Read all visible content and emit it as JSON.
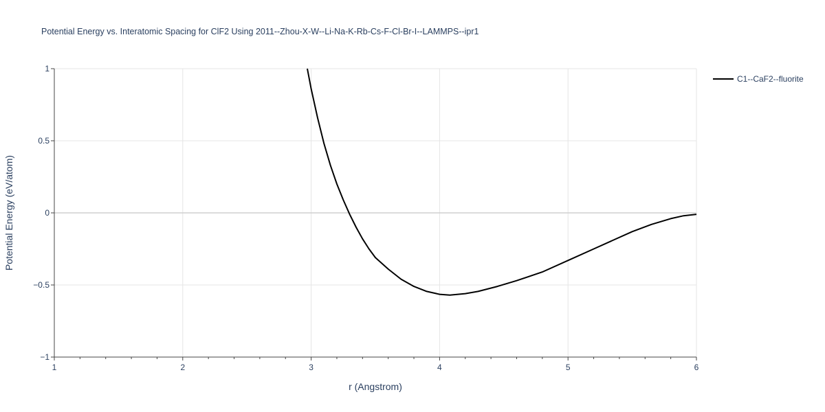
{
  "chart_data": {
    "type": "line",
    "title": "Potential Energy vs. Interatomic Spacing for ClF2 Using 2011--Zhou-X-W--Li-Na-K-Rb-Cs-F-Cl-Br-I--LAMMPS--ipr1",
    "xlabel": "r (Angstrom)",
    "ylabel": "Potential Energy (eV/atom)",
    "xlim": [
      1,
      6
    ],
    "ylim": [
      -1,
      1
    ],
    "x_ticks": [
      1,
      2,
      3,
      4,
      5,
      6
    ],
    "x_tick_labels": [
      "1",
      "2",
      "3",
      "4",
      "5",
      "6"
    ],
    "y_ticks": [
      -1,
      -0.5,
      0,
      0.5,
      1
    ],
    "y_tick_labels": [
      "−1",
      "−0.5",
      "0",
      "0.5",
      "1"
    ],
    "grid": true,
    "legend_position": "top-right",
    "series": [
      {
        "name": "C1--CaF2--fluorite",
        "color": "#000000",
        "x": [
          2.97,
          3.0,
          3.05,
          3.1,
          3.15,
          3.2,
          3.25,
          3.3,
          3.35,
          3.4,
          3.45,
          3.5,
          3.6,
          3.7,
          3.8,
          3.9,
          4.0,
          4.08,
          4.2,
          4.3,
          4.45,
          4.6,
          4.8,
          5.0,
          5.2,
          5.35,
          5.5,
          5.65,
          5.8,
          5.9,
          6.0
        ],
        "y": [
          1.0,
          0.86,
          0.66,
          0.48,
          0.33,
          0.2,
          0.09,
          -0.01,
          -0.1,
          -0.18,
          -0.25,
          -0.31,
          -0.39,
          -0.46,
          -0.51,
          -0.545,
          -0.565,
          -0.57,
          -0.56,
          -0.545,
          -0.51,
          -0.47,
          -0.41,
          -0.33,
          -0.25,
          -0.19,
          -0.13,
          -0.08,
          -0.04,
          -0.02,
          -0.01
        ]
      }
    ]
  }
}
